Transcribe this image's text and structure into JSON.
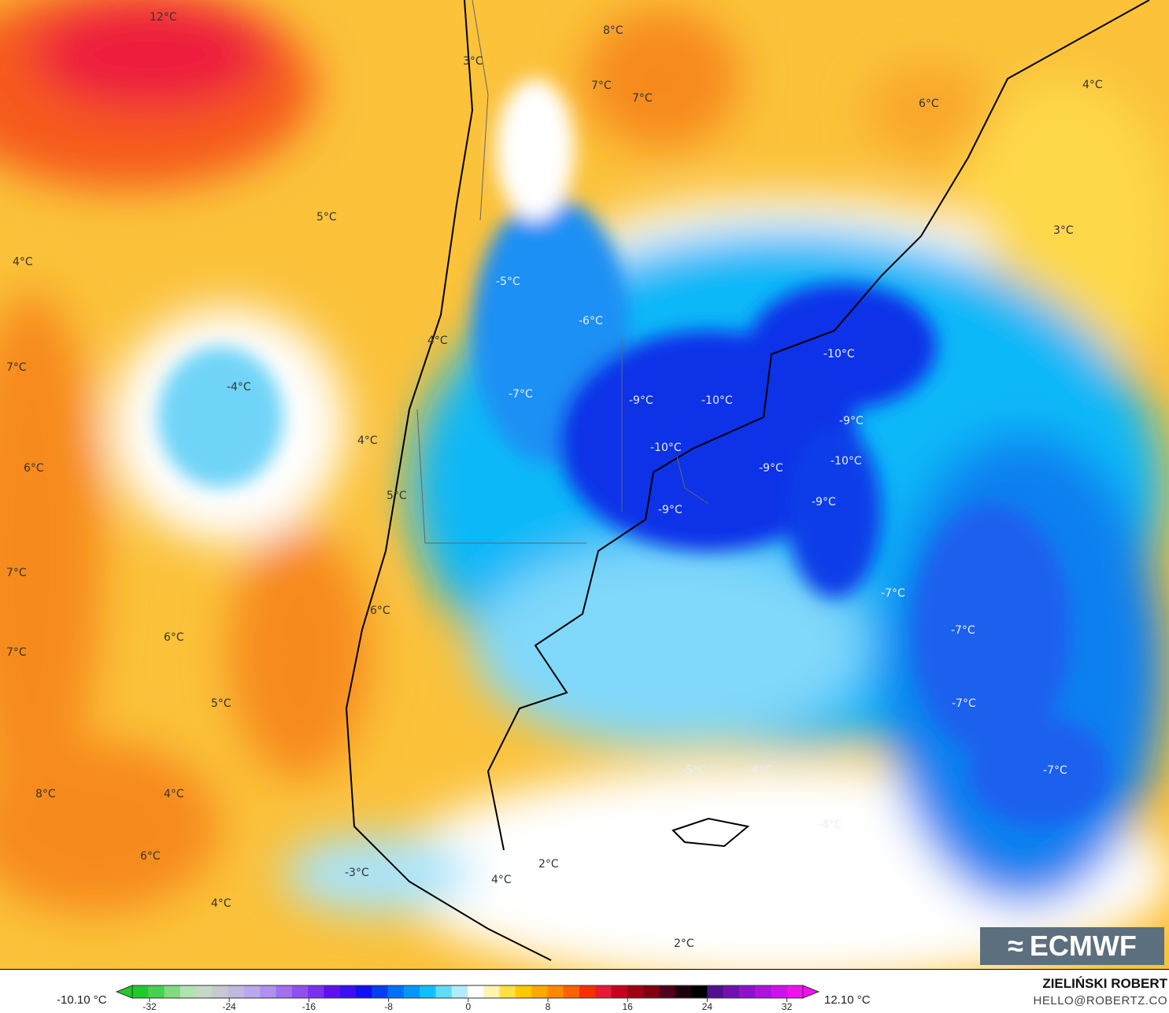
{
  "map": {
    "labels": [
      "12°C",
      "3°C",
      "8°C",
      "7°C",
      "7°C",
      "6°C",
      "4°C",
      "5°C",
      "4°C",
      "3°C",
      "-5°C",
      "-6°C",
      "4°C",
      "7°C",
      "-4°C",
      "-7°C",
      "-9°C",
      "-10°C",
      "-10°C",
      "-9°C",
      "4°C",
      "6°C",
      "-10°C",
      "-9°C",
      "-10°C",
      "5°C",
      "-9°C",
      "-9°C",
      "7°C",
      "6°C",
      "-7°C",
      "7°C",
      "6°C",
      "-7°C",
      "5°C",
      "-7°C",
      "-5°C",
      "-4°C",
      "-7°C",
      "8°C",
      "4°C",
      "-4°C",
      "6°C",
      "-3°C",
      "4°C",
      "2°C",
      "4°C",
      "2°C"
    ]
  },
  "colorbar": {
    "min_label": "-10.10 °C",
    "max_label": "12.10 °C",
    "ticks": [
      "-32",
      "-24",
      "-16",
      "-8",
      "0",
      "8",
      "16",
      "24",
      "32"
    ],
    "colors": [
      "#1ecb2a",
      "#46d24e",
      "#7fdc7f",
      "#b0e4b0",
      "#c8d8c8",
      "#c8c8d0",
      "#c0b8e0",
      "#b8a8ec",
      "#ae90f0",
      "#a070f0",
      "#9050f0",
      "#7a30f0",
      "#6010f0",
      "#3a10f0",
      "#1010f0",
      "#0040f0",
      "#0070f8",
      "#0098fc",
      "#10c0fc",
      "#60dcfc",
      "#b0ecfc",
      "#ffffff",
      "#fff4b0",
      "#ffe040",
      "#ffc800",
      "#ffa800",
      "#ff8800",
      "#ff6000",
      "#f83000",
      "#e81838",
      "#c80020",
      "#a00010",
      "#800010",
      "#500018",
      "#200010",
      "#000000",
      "#501090",
      "#7010b0",
      "#9010d0",
      "#b010e0",
      "#d010f0",
      "#f010f0"
    ]
  },
  "branding": {
    "logo": "ECMWF",
    "author": "ZIELIŃSKI ROBERT",
    "email": "HELLO@ROBERTZ.CO"
  }
}
